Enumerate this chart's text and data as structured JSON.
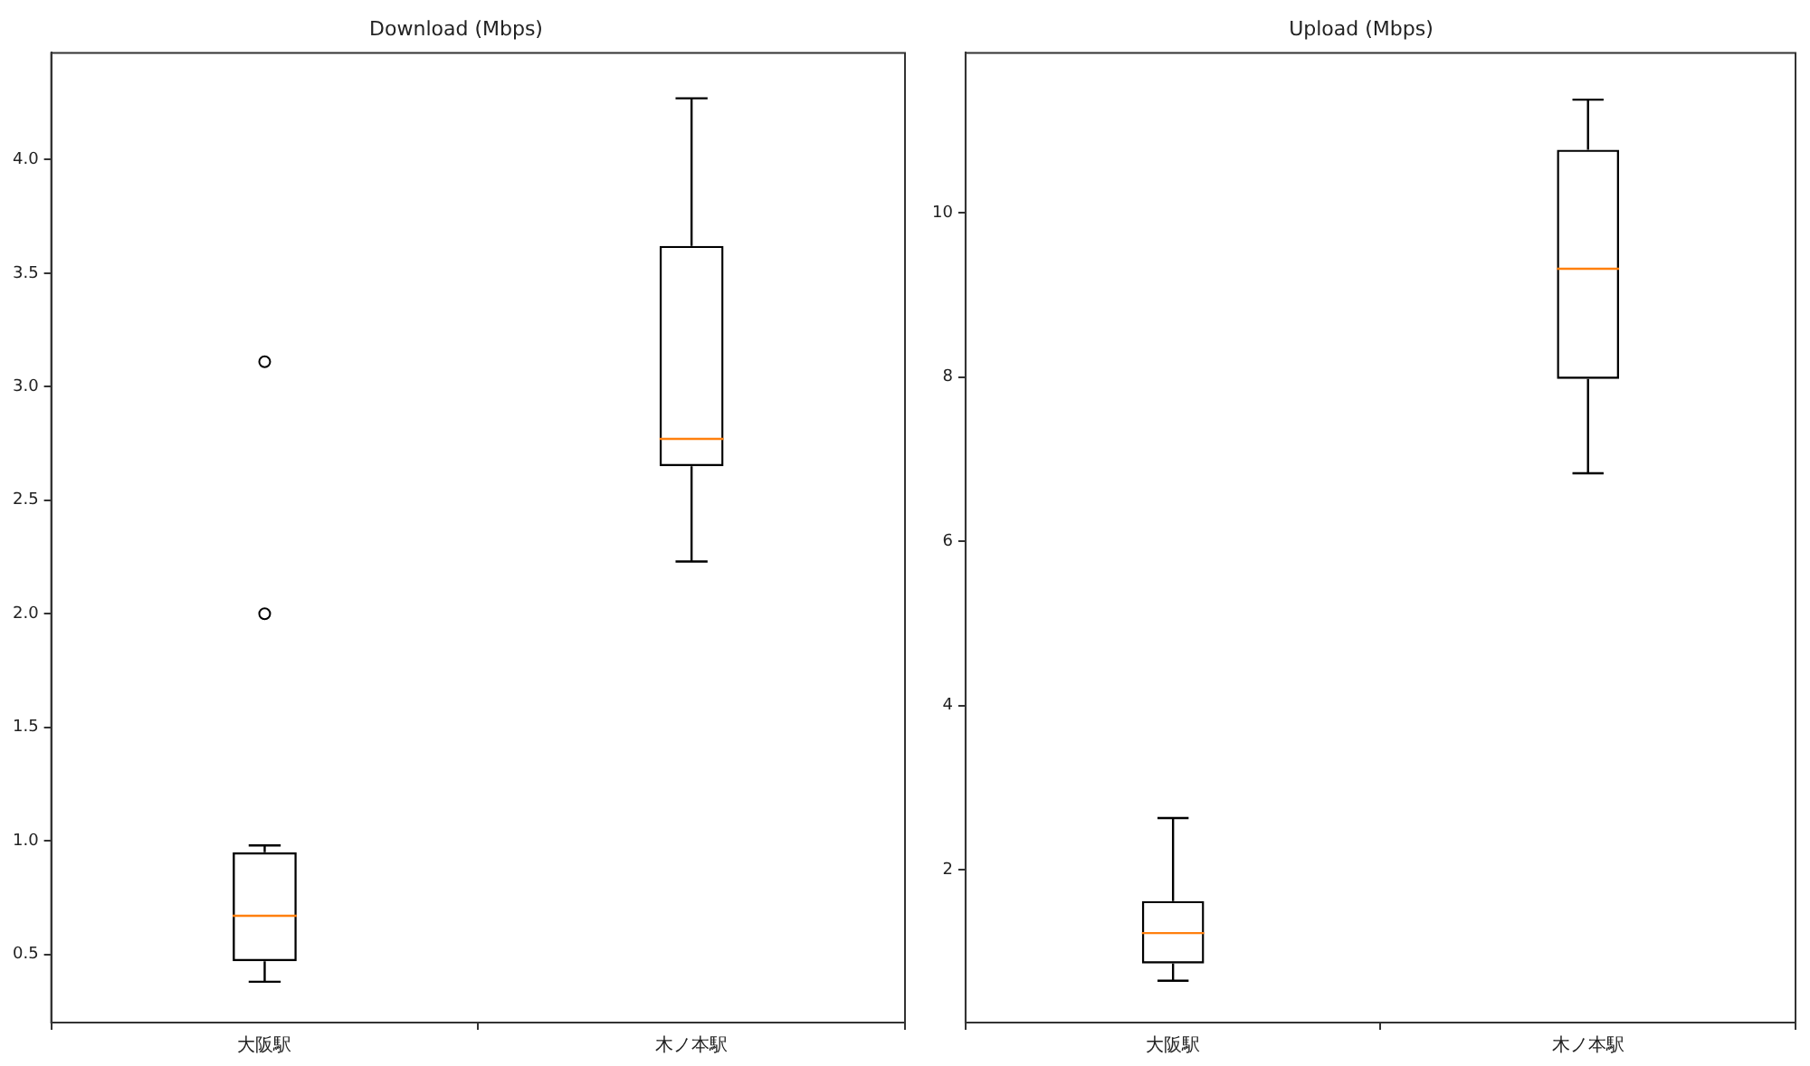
{
  "chart_data": [
    {
      "type": "box",
      "title": "Download (Mbps)",
      "categories": [
        "大阪駅",
        "木ノ本駅"
      ],
      "grid": false,
      "boxes": [
        {
          "low": 0.38,
          "q1": 0.47,
          "median": 0.67,
          "q3": 0.95,
          "high": 0.98,
          "outliers": [
            2.0,
            3.11
          ]
        },
        {
          "low": 2.23,
          "q1": 2.65,
          "median": 2.77,
          "q3": 3.62,
          "high": 4.27
        }
      ],
      "ylim": [
        0.2,
        4.47
      ],
      "yticks": [
        0.5,
        {
          "value": 1.0,
          "label": "1.0"
        },
        1.5,
        {
          "value": 2.0,
          "label": "2.0"
        },
        2.5,
        {
          "value": 3.0,
          "label": "3.0"
        },
        3.5,
        {
          "value": 4.0,
          "label": "4.0"
        }
      ]
    },
    {
      "type": "box",
      "title": "Upload (Mbps)",
      "categories": [
        "大阪駅",
        "木ノ本駅"
      ],
      "grid": false,
      "boxes": [
        {
          "low": 0.65,
          "q1": 0.86,
          "median": 1.23,
          "q3": 1.62,
          "high": 2.63
        },
        {
          "low": 6.83,
          "q1": 7.98,
          "median": 9.32,
          "q3": 10.77,
          "high": 11.38
        }
      ],
      "ylim": [
        0.14,
        11.95
      ],
      "yticks": [
        2,
        4,
        6,
        8,
        10
      ]
    }
  ]
}
